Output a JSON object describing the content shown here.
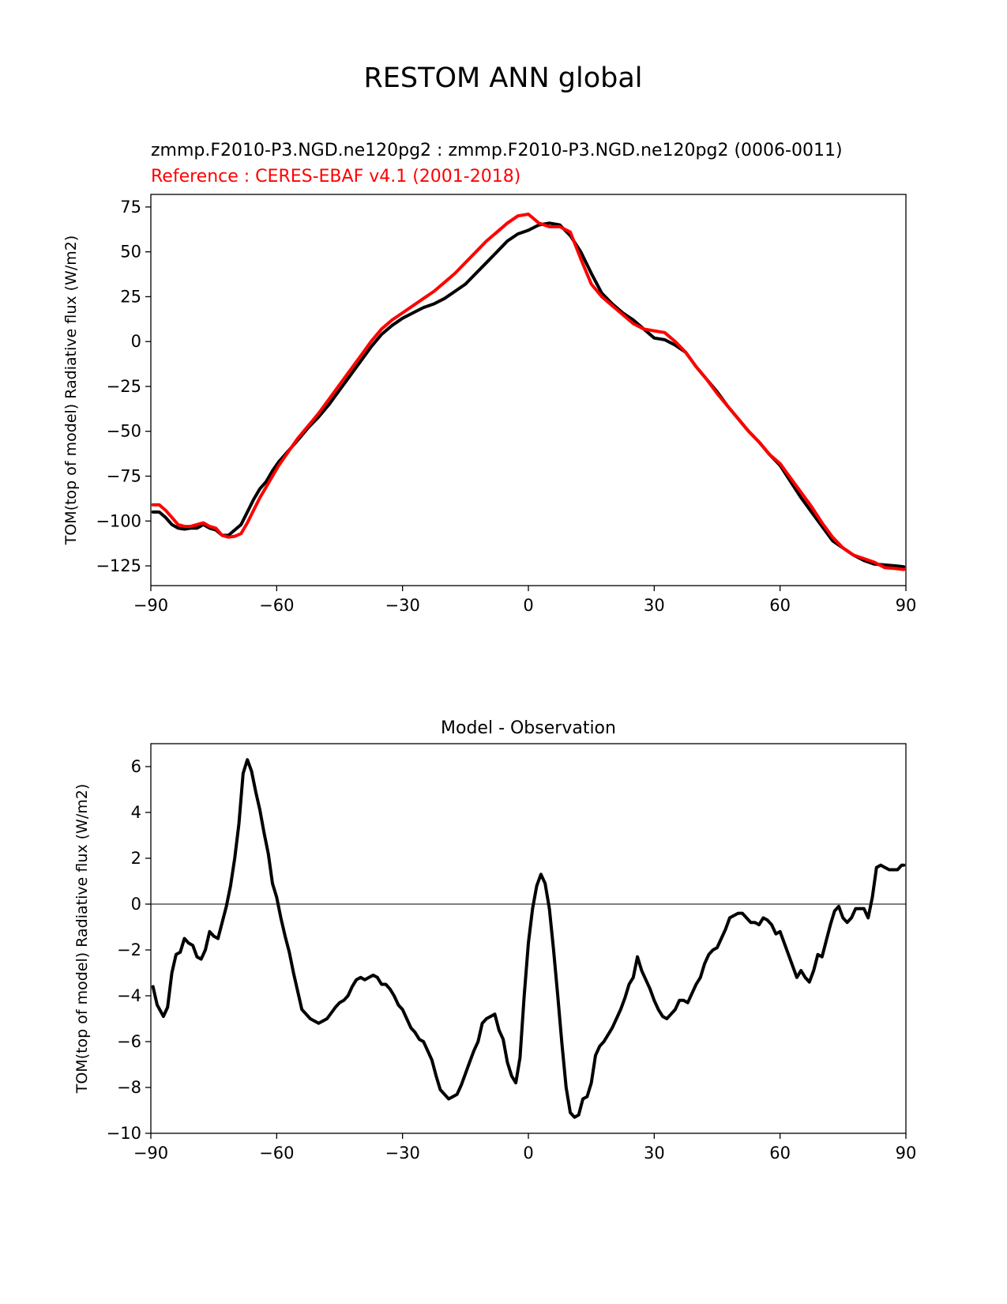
{
  "figure": {
    "suptitle": "RESTOM ANN global"
  },
  "colors": {
    "model": "#000000",
    "reference": "#ff0000",
    "zero_line": "#808080"
  },
  "chart_data": [
    {
      "type": "line",
      "title": "zmmp.F2010-P3.NGD.ne120pg2 : zmmp.F2010-P3.NGD.ne120pg2 (0006-0011)",
      "subtitle": "Reference : CERES-EBAF v4.1 (2001-2018)",
      "xlabel": "",
      "ylabel": "TOM(top of model) Radiative flux (W/m2)",
      "xlim": [
        -90,
        90
      ],
      "ylim": [
        -136,
        82
      ],
      "xticks": [
        -90,
        -60,
        -30,
        0,
        30,
        60,
        90
      ],
      "yticks": [
        75,
        50,
        25,
        0,
        -25,
        -50,
        -75,
        -100,
        -125
      ],
      "grid": false,
      "series": [
        {
          "name": "zmmp.F2010-P3.NGD.ne120pg2",
          "color": "#000000",
          "x": [
            -89.5,
            -88,
            -86.5,
            -85,
            -83.5,
            -82,
            -80.5,
            -79,
            -77.5,
            -76,
            -74.5,
            -73,
            -71.5,
            -70,
            -68.5,
            -67,
            -65.5,
            -64,
            -62.5,
            -61,
            -59.5,
            -58,
            -56.5,
            -55,
            -52.5,
            -50,
            -47.5,
            -45,
            -42.5,
            -40,
            -37.5,
            -35,
            -32.5,
            -30,
            -27.5,
            -25,
            -22.5,
            -20,
            -17.5,
            -15,
            -12.5,
            -10,
            -7.5,
            -5,
            -2.5,
            0,
            2.5,
            5,
            7.5,
            10,
            12.5,
            15,
            17.5,
            20,
            22.5,
            25,
            27.5,
            30,
            32.5,
            35,
            37.5,
            40,
            42.5,
            45,
            47.5,
            50,
            52.5,
            55,
            57.5,
            60,
            62.5,
            65,
            67.5,
            70,
            72.5,
            75,
            77.5,
            80,
            82.5,
            85,
            87.5,
            89.5
          ],
          "y": [
            -95,
            -95,
            -98,
            -102,
            -104,
            -104.5,
            -104,
            -104,
            -102,
            -104,
            -105,
            -108,
            -108,
            -105,
            -102,
            -95,
            -88,
            -82,
            -78,
            -72,
            -67,
            -63,
            -59,
            -55,
            -48,
            -42,
            -35,
            -27,
            -19,
            -11,
            -3,
            4,
            9,
            13,
            16,
            19,
            21,
            24,
            28,
            32,
            38,
            44,
            50,
            56,
            60,
            62,
            65,
            66,
            65,
            59,
            50,
            38,
            27,
            21,
            16,
            12,
            7,
            2,
            1,
            -2,
            -6,
            -14,
            -21,
            -28,
            -36,
            -43,
            -50,
            -56,
            -63,
            -69,
            -78,
            -87,
            -95,
            -103,
            -111,
            -115,
            -119,
            -122,
            -124,
            -124.5,
            -125,
            -125.5
          ]
        },
        {
          "name": "CERES-EBAF v4.1",
          "color": "#ff0000",
          "x": [
            -89.5,
            -88,
            -86.5,
            -85,
            -83.5,
            -82,
            -80.5,
            -79,
            -77.5,
            -76,
            -74.5,
            -73,
            -71.5,
            -70,
            -68.5,
            -67,
            -65.5,
            -64,
            -62.5,
            -61,
            -59.5,
            -58,
            -56.5,
            -55,
            -52.5,
            -50,
            -47.5,
            -45,
            -42.5,
            -40,
            -37.5,
            -35,
            -32.5,
            -30,
            -27.5,
            -25,
            -22.5,
            -20,
            -17.5,
            -15,
            -12.5,
            -10,
            -7.5,
            -5,
            -2.5,
            0,
            2.5,
            5,
            7.5,
            10,
            12.5,
            15,
            17.5,
            20,
            22.5,
            25,
            27.5,
            30,
            32.5,
            35,
            37.5,
            40,
            42.5,
            45,
            47.5,
            50,
            52.5,
            55,
            57.5,
            60,
            62.5,
            65,
            67.5,
            70,
            72.5,
            75,
            77.5,
            80,
            82.5,
            85,
            87.5,
            89.5
          ],
          "y": [
            -91,
            -91,
            -94,
            -98,
            -102,
            -103,
            -103,
            -102,
            -101,
            -103,
            -104,
            -108,
            -109,
            -108.5,
            -107,
            -101,
            -94,
            -87,
            -81,
            -75,
            -69,
            -64,
            -59,
            -54,
            -47,
            -40,
            -32,
            -24,
            -16,
            -8,
            0,
            7,
            12,
            16,
            20,
            24,
            28,
            33,
            38,
            44,
            50,
            56,
            61,
            66,
            70,
            71,
            66,
            64,
            64,
            61,
            46,
            32,
            25,
            20,
            15,
            10,
            7,
            6,
            5,
            0,
            -6,
            -14,
            -21,
            -29,
            -36,
            -43,
            -50,
            -56,
            -63,
            -68,
            -76,
            -84,
            -92,
            -101,
            -109,
            -115,
            -119,
            -121,
            -123,
            -126,
            -126.5,
            -127
          ]
        }
      ]
    },
    {
      "type": "line",
      "title": "Model - Observation",
      "xlabel": "",
      "ylabel": "TOM(top of model) Radiative flux (W/m2)",
      "xlim": [
        -90,
        90
      ],
      "ylim": [
        -10,
        7
      ],
      "xticks": [
        -90,
        -60,
        -30,
        0,
        30,
        60,
        90
      ],
      "yticks": [
        6,
        4,
        2,
        0,
        -2,
        -4,
        -6,
        -8,
        -10
      ],
      "grid": false,
      "zero_line": 0,
      "series": [
        {
          "color": "#000000",
          "x": [
            -89.5,
            -88.5,
            -87,
            -86,
            -85,
            -84,
            -83,
            -82,
            -81,
            -80,
            -79,
            -78,
            -77,
            -76,
            -75,
            -74,
            -73,
            -72,
            -71,
            -70,
            -69,
            -68,
            -67,
            -66,
            -65,
            -64,
            -63,
            -62,
            -61,
            -60,
            -59,
            -58,
            -57,
            -56,
            -54,
            -52,
            -50,
            -48,
            -46,
            -45,
            -44,
            -43,
            -42,
            -41,
            -40,
            -39,
            -38,
            -37,
            -36,
            -35,
            -34,
            -33,
            -32,
            -31,
            -30,
            -29,
            -28,
            -27,
            -26,
            -25,
            -24,
            -23,
            -22,
            -21,
            -20,
            -19,
            -18,
            -17,
            -16,
            -15,
            -14,
            -13,
            -12,
            -11,
            -10,
            -9,
            -8,
            -7,
            -6,
            -5,
            -4,
            -3,
            -2,
            -1,
            0,
            1,
            2,
            3,
            4,
            5,
            6,
            7,
            8,
            9,
            10,
            11,
            12,
            13,
            14,
            15,
            16,
            17,
            18,
            19,
            20,
            21,
            22,
            23,
            24,
            25,
            26,
            27,
            28,
            29,
            30,
            31,
            32,
            33,
            34,
            35,
            36,
            37,
            38,
            39,
            40,
            41,
            42,
            43,
            44,
            45,
            46,
            47,
            48,
            49,
            50,
            51,
            52,
            53,
            54,
            55,
            56,
            57,
            58,
            59,
            60,
            61,
            62,
            63,
            64,
            65,
            66,
            67,
            68,
            69,
            70,
            71,
            72,
            73,
            74,
            75,
            76,
            77,
            78,
            79,
            80,
            81,
            82,
            83,
            84,
            85,
            86,
            87,
            88,
            89,
            89.5
          ],
          "y": [
            -3.6,
            -4.4,
            -4.9,
            -4.5,
            -3,
            -2.2,
            -2.1,
            -1.5,
            -1.7,
            -1.8,
            -2.3,
            -2.4,
            -2,
            -1.2,
            -1.4,
            -1.5,
            -0.8,
            -0.1,
            0.8,
            2,
            3.5,
            5.7,
            6.3,
            5.8,
            4.9,
            4.1,
            3.1,
            2.2,
            0.9,
            0.3,
            -0.6,
            -1.4,
            -2.1,
            -3,
            -4.6,
            -5,
            -5.2,
            -5,
            -4.5,
            -4.3,
            -4.2,
            -4,
            -3.6,
            -3.3,
            -3.2,
            -3.3,
            -3.2,
            -3.1,
            -3.2,
            -3.5,
            -3.5,
            -3.7,
            -4,
            -4.4,
            -4.6,
            -5,
            -5.4,
            -5.6,
            -5.9,
            -6,
            -6.4,
            -6.8,
            -7.5,
            -8.1,
            -8.3,
            -8.5,
            -8.4,
            -8.3,
            -7.9,
            -7.4,
            -6.9,
            -6.4,
            -6,
            -5.2,
            -5,
            -4.9,
            -4.8,
            -5.5,
            -5.9,
            -6.9,
            -7.5,
            -7.8,
            -6.7,
            -4,
            -1.7,
            -0.2,
            0.8,
            1.3,
            0.9,
            -0.2,
            -2,
            -4,
            -6.1,
            -8,
            -9.1,
            -9.3,
            -9.2,
            -8.5,
            -8.4,
            -7.8,
            -6.6,
            -6.2,
            -6,
            -5.7,
            -5.4,
            -5,
            -4.6,
            -4.1,
            -3.5,
            -3.2,
            -2.3,
            -2.9,
            -3.3,
            -3.7,
            -4.2,
            -4.6,
            -4.9,
            -5,
            -4.8,
            -4.6,
            -4.2,
            -4.2,
            -4.3,
            -3.9,
            -3.5,
            -3.2,
            -2.6,
            -2.2,
            -2,
            -1.9,
            -1.5,
            -1.1,
            -0.6,
            -0.5,
            -0.4,
            -0.4,
            -0.6,
            -0.8,
            -0.8,
            -0.9,
            -0.6,
            -0.7,
            -0.9,
            -1.3,
            -1.2,
            -1.7,
            -2.2,
            -2.7,
            -3.2,
            -2.9,
            -3.2,
            -3.4,
            -2.9,
            -2.2,
            -2.3,
            -1.6,
            -0.9,
            -0.3,
            -0.1,
            -0.6,
            -0.8,
            -0.6,
            -0.2,
            -0.2,
            -0.2,
            -0.6,
            0.3,
            1.6,
            1.7,
            1.6,
            1.5,
            1.5,
            1.5,
            1.7,
            1.7
          ]
        }
      ]
    }
  ]
}
